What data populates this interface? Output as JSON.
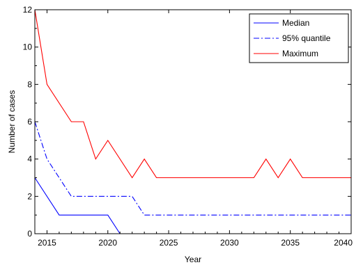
{
  "chart_data": {
    "type": "line",
    "xlabel": "Year",
    "ylabel": "Number of cases",
    "xlim": [
      2014,
      2040
    ],
    "ylim": [
      0,
      12
    ],
    "xticks": [
      2015,
      2020,
      2025,
      2030,
      2035,
      2040
    ],
    "yticks": [
      0,
      2,
      4,
      6,
      8,
      10,
      12
    ],
    "grid": false,
    "legend_position": "top-right",
    "series": [
      {
        "name": "Median",
        "color": "#0000ff",
        "dash": "solid",
        "points": [
          [
            2014,
            3
          ],
          [
            2016,
            1
          ],
          [
            2020,
            1
          ],
          [
            2021,
            0
          ]
        ]
      },
      {
        "name": "95% quantile",
        "color": "#0000ff",
        "dash": "dashdot",
        "points": [
          [
            2014,
            6
          ],
          [
            2015,
            4
          ],
          [
            2017,
            2
          ],
          [
            2022,
            2
          ],
          [
            2023,
            1
          ],
          [
            2040,
            1
          ]
        ]
      },
      {
        "name": "Maximum",
        "color": "#ff0000",
        "dash": "solid",
        "points": [
          [
            2014,
            12
          ],
          [
            2015,
            8
          ],
          [
            2017,
            6
          ],
          [
            2018,
            6
          ],
          [
            2019,
            4
          ],
          [
            2020,
            5
          ],
          [
            2022,
            3
          ],
          [
            2023,
            4
          ],
          [
            2024,
            3
          ],
          [
            2032,
            3
          ],
          [
            2033,
            4
          ],
          [
            2034,
            3
          ],
          [
            2035,
            4
          ],
          [
            2036,
            3
          ],
          [
            2040,
            3
          ]
        ]
      }
    ]
  }
}
